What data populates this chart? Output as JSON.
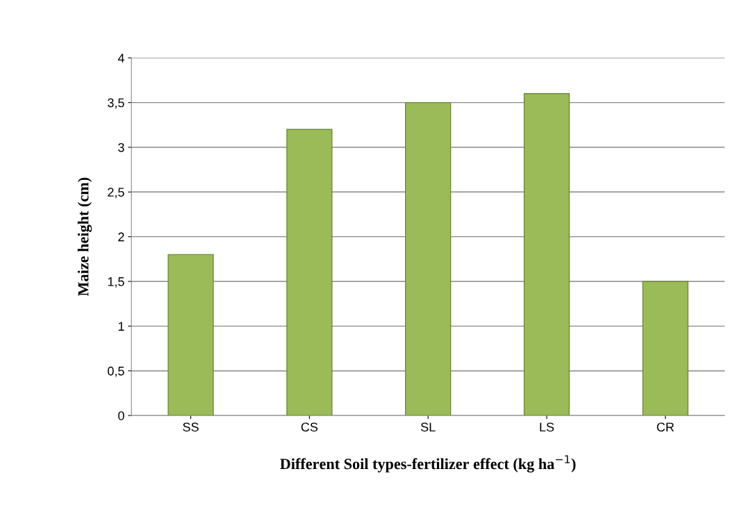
{
  "chart_data": {
    "type": "bar",
    "categories": [
      "SS",
      "CS",
      "SL",
      "LS",
      "CR"
    ],
    "values": [
      1.8,
      3.2,
      3.5,
      3.6,
      1.5
    ],
    "color": "#9bbb59",
    "xlabel": "Different Soil types-fertilizer effect (kg ha$^{−1}$)",
    "ylabel": "Maize height (cm)",
    "ylim": [
      0,
      4
    ],
    "yticks": [
      0,
      {
        "value": 0.5,
        "label": "0,5"
      },
      1,
      {
        "value": 1.5,
        "label": "1,5"
      },
      2,
      {
        "value": 2.5,
        "label": "2,5"
      },
      3,
      {
        "value": 3.5,
        "label": "3,5"
      },
      4
    ],
    "grid": "y"
  }
}
